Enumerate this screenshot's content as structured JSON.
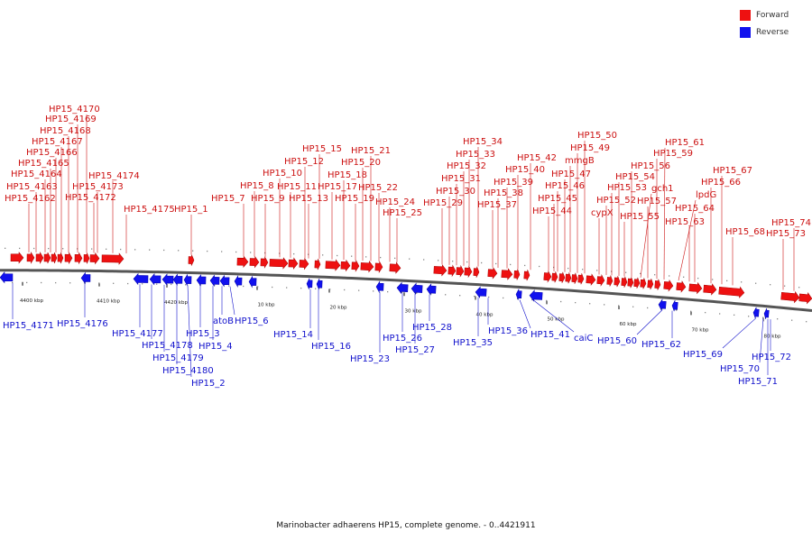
{
  "legend": {
    "forward": {
      "label": "Forward",
      "color": "#ee1111"
    },
    "reverse": {
      "label": "Reverse",
      "color": "#1111ee"
    }
  },
  "footer": "Marinobacter adhaerens HP15, complete genome. - 0..4421911",
  "scale_labels": [
    "4400 kbp",
    "4410 kbp",
    "4420 kbp",
    "10 kbp",
    "20 kbp",
    "30 kbp",
    "40 kbp",
    "50 kbp",
    "60 kbp",
    "70 kbp",
    "80 kbp"
  ],
  "forward_labels": [
    "HP15_4162",
    "HP15_4163",
    "HP15_4164",
    "HP15_4165",
    "HP15_4166",
    "HP15_4167",
    "HP15_4168",
    "HP15_4169",
    "HP15_4170",
    "HP15_4172",
    "HP15_4173",
    "HP15_4174",
    "HP15_4175",
    "HP15_1",
    "HP15_7",
    "HP15_8",
    "HP15_9",
    "HP15_10",
    "HP15_11",
    "HP15_12",
    "HP15_13",
    "HP15_15",
    "HP15_17",
    "HP15_18",
    "HP15_19",
    "HP15_20",
    "HP15_21",
    "HP15_22",
    "HP15_24",
    "HP15_25",
    "HP15_29",
    "HP15_30",
    "HP15_31",
    "HP15_32",
    "HP15_33",
    "HP15_34",
    "HP15_37",
    "HP15_38",
    "HP15_39",
    "HP15_40",
    "HP15_42",
    "HP15_44",
    "HP15_45",
    "HP15_46",
    "HP15_47",
    "mmgB",
    "HP15_49",
    "HP15_50",
    "cypX",
    "HP15_52",
    "HP15_53",
    "HP15_54",
    "HP15_55",
    "HP15_56",
    "gch1",
    "HP15_57",
    "HP15_59",
    "HP15_61",
    "lpdG",
    "HP15_64",
    "HP15_63",
    "HP15_66",
    "HP15_67",
    "HP15_68",
    "HP15_73",
    "HP15_74"
  ],
  "reverse_labels": [
    "HP15_4171",
    "HP15_4176",
    "HP15_4177",
    "HP15_4178",
    "HP15_4179",
    "HP15_4180",
    "HP15_2",
    "HP15_3",
    "HP15_4",
    "atoB",
    "HP15_6",
    "HP15_14",
    "HP15_16",
    "HP15_23",
    "HP15_26",
    "HP15_27",
    "HP15_28",
    "HP15_35",
    "HP15_36",
    "HP15_41",
    "caiC",
    "HP15_60",
    "HP15_62",
    "HP15_69",
    "HP15_70",
    "HP15_71",
    "HP15_72"
  ]
}
